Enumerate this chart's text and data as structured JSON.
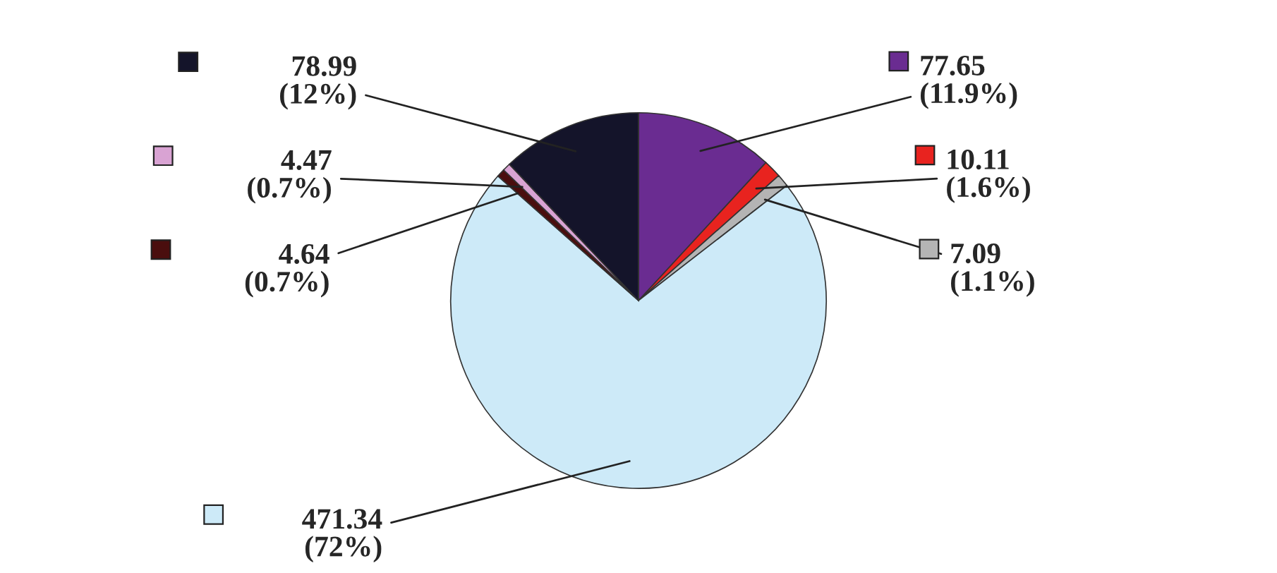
{
  "chart_data": {
    "type": "pie",
    "categories": [
      null,
      null,
      null,
      null,
      null,
      null,
      null
    ],
    "values": [
      77.65,
      10.11,
      7.09,
      471.34,
      4.64,
      4.47,
      78.99
    ],
    "colors": [
      "#6a2c91",
      "#e8231f",
      "#b4b4b4",
      "#cdeaf8",
      "#4a0e0e",
      "#d9a3d3",
      "#14142a"
    ],
    "value_labels": [
      "77.65\n(11.9%)",
      "10.11\n(1.6%)",
      "7.09\n(1.1%)",
      "471.34\n(72%)",
      "4.64\n(0.7%)",
      "4.47\n(0.7%)",
      "78.99\n(12%)"
    ]
  }
}
